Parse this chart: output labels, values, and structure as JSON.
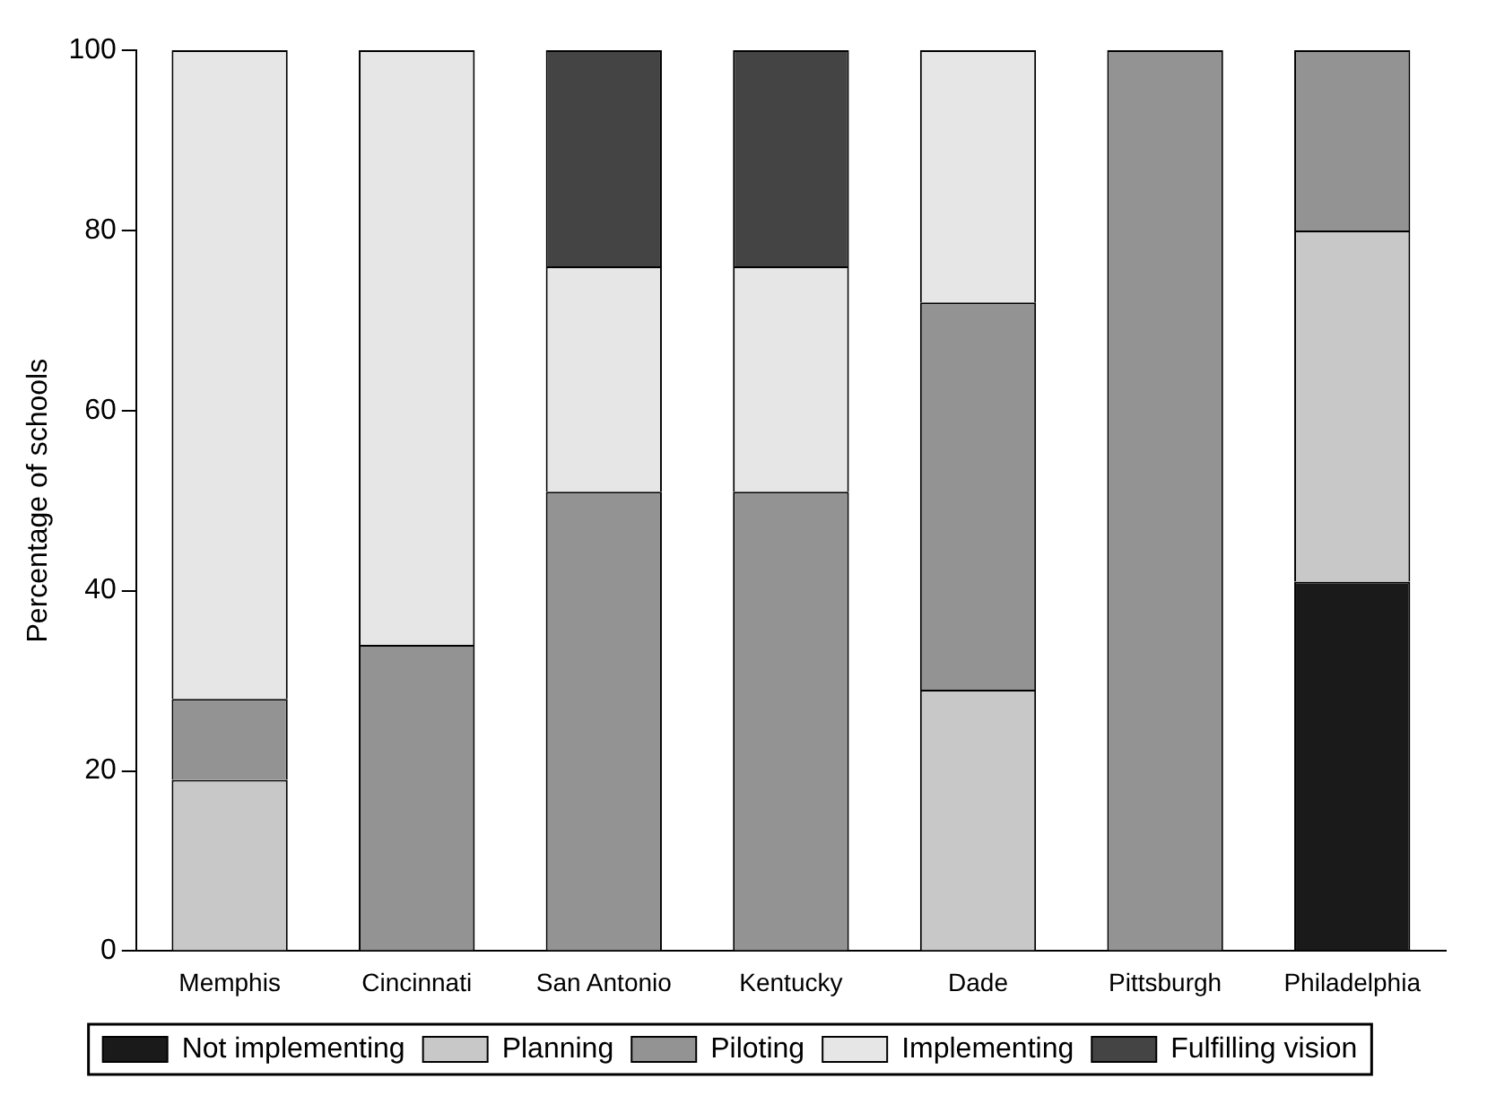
{
  "chart_data": {
    "type": "bar",
    "stacked": true,
    "ylabel": "Percentage of schools",
    "categories": [
      "Memphis",
      "Cincinnati",
      "San Antonio",
      "Kentucky",
      "Dade",
      "Pittsburgh",
      "Philadelphia"
    ],
    "series": [
      {
        "name": "Not implementing",
        "color": "#1a1a1a",
        "values": [
          0,
          0,
          0,
          0,
          0,
          0,
          41
        ]
      },
      {
        "name": "Planning",
        "color": "#c8c8c8",
        "values": [
          19,
          0,
          0,
          0,
          29,
          0,
          39
        ]
      },
      {
        "name": "Piloting",
        "color": "#939393",
        "values": [
          9,
          34,
          51,
          51,
          43,
          100,
          20
        ]
      },
      {
        "name": "Implementing",
        "color": "#e6e6e6",
        "values": [
          72,
          66,
          25,
          25,
          28,
          0,
          0
        ]
      },
      {
        "name": "Fulfilling vision",
        "color": "#444444",
        "values": [
          0,
          0,
          24,
          24,
          0,
          0,
          0
        ]
      }
    ],
    "ylim": [
      0,
      100
    ],
    "yticks": [
      0,
      20,
      40,
      60,
      80,
      100
    ],
    "grid": false,
    "legend": "bottom"
  }
}
